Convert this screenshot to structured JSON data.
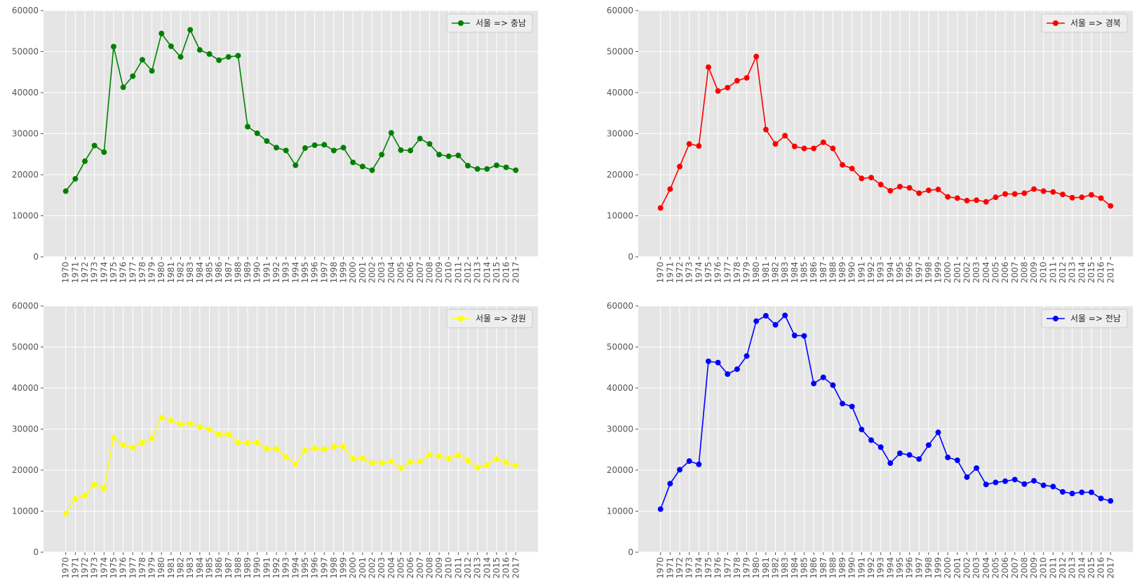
{
  "figure": {
    "background": "#ffffff",
    "axes_background": "#e5e5e5",
    "grid_color": "#ffffff",
    "tick_color": "#555555"
  },
  "chart_data": [
    {
      "type": "line",
      "marker": "circle",
      "legend": "서울 => 충남",
      "legend_position": "top-right",
      "color": "#008000",
      "grid": true,
      "x": [
        "1970",
        "1971",
        "1972",
        "1973",
        "1974",
        "1975",
        "1976",
        "1977",
        "1978",
        "1979",
        "1980",
        "1981",
        "1982",
        "1983",
        "1984",
        "1985",
        "1986",
        "1987",
        "1988",
        "1989",
        "1990",
        "1991",
        "1992",
        "1993",
        "1994",
        "1995",
        "1996",
        "1997",
        "1998",
        "1999",
        "2000",
        "2001",
        "2002",
        "2003",
        "2004",
        "2005",
        "2006",
        "2007",
        "2008",
        "2009",
        "2010",
        "2011",
        "2012",
        "2013",
        "2014",
        "2015",
        "2016",
        "2017"
      ],
      "y": [
        16000,
        19000,
        23300,
        27100,
        25500,
        51200,
        41300,
        44000,
        48000,
        45300,
        54400,
        51300,
        48700,
        55300,
        50400,
        49400,
        47900,
        48700,
        49000,
        31700,
        30100,
        28200,
        26600,
        25900,
        22300,
        26500,
        27200,
        27300,
        25900,
        26600,
        23000,
        22000,
        21100,
        24900,
        30200,
        26000,
        25900,
        28800,
        27500,
        24900,
        24500,
        24700,
        22200,
        21400,
        21400,
        22300,
        21800,
        21100
      ],
      "ylim": [
        0,
        60000
      ],
      "yticks": [
        "0",
        "10000",
        "20000",
        "30000",
        "40000",
        "50000",
        "60000"
      ]
    },
    {
      "type": "line",
      "marker": "circle",
      "legend": "서울 => 경북",
      "legend_position": "top-right",
      "color": "#ff0000",
      "grid": true,
      "x": [
        "1970",
        "1971",
        "1972",
        "1973",
        "1974",
        "1975",
        "1976",
        "1977",
        "1978",
        "1979",
        "1980",
        "1981",
        "1982",
        "1983",
        "1984",
        "1985",
        "1986",
        "1987",
        "1988",
        "1989",
        "1990",
        "1991",
        "1992",
        "1993",
        "1994",
        "1995",
        "1996",
        "1997",
        "1998",
        "1999",
        "2000",
        "2001",
        "2002",
        "2003",
        "2004",
        "2005",
        "2006",
        "2007",
        "2008",
        "2009",
        "2010",
        "2011",
        "2012",
        "2013",
        "2014",
        "2015",
        "2016",
        "2017"
      ],
      "y": [
        11900,
        16500,
        22000,
        27500,
        27000,
        46200,
        40400,
        41200,
        42900,
        43600,
        48800,
        31000,
        27500,
        29500,
        26900,
        26400,
        26400,
        27900,
        26400,
        22400,
        21500,
        19100,
        19300,
        17600,
        16100,
        17100,
        16800,
        15500,
        16200,
        16400,
        14600,
        14300,
        13700,
        13800,
        13400,
        14500,
        15300,
        15300,
        15500,
        16500,
        16000,
        15800,
        15200,
        14400,
        14500,
        15100,
        14300,
        12400
      ],
      "ylim": [
        0,
        60000
      ],
      "yticks": [
        "0",
        "10000",
        "20000",
        "30000",
        "40000",
        "50000",
        "60000"
      ]
    },
    {
      "type": "line",
      "marker": "circle",
      "legend": "서울 => 강원",
      "legend_position": "top-right",
      "color": "#ffff00",
      "grid": true,
      "x": [
        "1970",
        "1971",
        "1972",
        "1973",
        "1974",
        "1975",
        "1976",
        "1977",
        "1978",
        "1979",
        "1980",
        "1981",
        "1982",
        "1983",
        "1984",
        "1985",
        "1986",
        "1987",
        "1988",
        "1989",
        "1990",
        "1991",
        "1992",
        "1993",
        "1994",
        "1995",
        "1996",
        "1997",
        "1998",
        "1999",
        "2000",
        "2001",
        "2002",
        "2003",
        "2004",
        "2005",
        "2006",
        "2007",
        "2008",
        "2009",
        "2010",
        "2011",
        "2012",
        "2013",
        "2014",
        "2015",
        "2016",
        "2017"
      ],
      "y": [
        9400,
        13000,
        13800,
        16500,
        15500,
        27900,
        26100,
        25500,
        26700,
        27800,
        32800,
        32100,
        31200,
        31300,
        30500,
        29900,
        28700,
        28700,
        26700,
        26600,
        26700,
        25200,
        25200,
        23200,
        21500,
        24900,
        25300,
        25100,
        25700,
        25700,
        22800,
        22900,
        21700,
        21700,
        22100,
        20500,
        22000,
        22100,
        23700,
        23400,
        22800,
        23600,
        22300,
        20600,
        21200,
        22700,
        21800,
        21100
      ],
      "ylim": [
        0,
        60000
      ],
      "yticks": [
        "0",
        "10000",
        "20000",
        "30000",
        "40000",
        "50000",
        "60000"
      ]
    },
    {
      "type": "line",
      "marker": "circle",
      "legend": "서울 => 전남",
      "legend_position": "top-right",
      "color": "#0000ff",
      "grid": true,
      "x": [
        "1970",
        "1971",
        "1972",
        "1973",
        "1974",
        "1975",
        "1976",
        "1977",
        "1978",
        "1979",
        "1980",
        "1981",
        "1982",
        "1983",
        "1984",
        "1985",
        "1986",
        "1987",
        "1988",
        "1989",
        "1990",
        "1991",
        "1992",
        "1993",
        "1994",
        "1995",
        "1996",
        "1997",
        "1998",
        "1999",
        "2000",
        "2001",
        "2002",
        "2003",
        "2004",
        "2005",
        "2006",
        "2007",
        "2008",
        "2009",
        "2010",
        "2011",
        "2012",
        "2013",
        "2014",
        "2015",
        "2016",
        "2017"
      ],
      "y": [
        10500,
        16700,
        20100,
        22200,
        21400,
        46500,
        46200,
        43400,
        44600,
        47800,
        56300,
        57600,
        55400,
        57700,
        52800,
        52700,
        41100,
        42600,
        40700,
        36200,
        35500,
        29900,
        27300,
        25600,
        21700,
        24100,
        23700,
        22700,
        26100,
        29200,
        23100,
        22400,
        18300,
        20500,
        16500,
        17000,
        17300,
        17700,
        16600,
        17400,
        16300,
        16000,
        14700,
        14300,
        14600,
        14600,
        13100,
        12500
      ],
      "ylim": [
        0,
        60000
      ],
      "yticks": [
        "0",
        "10000",
        "20000",
        "30000",
        "40000",
        "50000",
        "60000"
      ]
    }
  ]
}
